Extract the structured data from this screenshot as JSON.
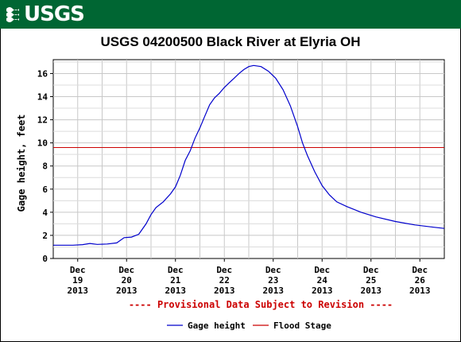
{
  "header": {
    "logo_text": "USGS"
  },
  "chart_data": {
    "type": "line",
    "title": "USGS 04200500 Black River at Elyria OH",
    "ylabel": "Gage height, feet",
    "xlabel": "",
    "ylim": [
      0,
      17.2
    ],
    "yticks": [
      0,
      2,
      4,
      6,
      8,
      10,
      12,
      14,
      16
    ],
    "xlim": [
      0,
      8
    ],
    "xticks": [
      {
        "x": 0.5,
        "lines": [
          "Dec",
          "19",
          "2013"
        ]
      },
      {
        "x": 1.5,
        "lines": [
          "Dec",
          "20",
          "2013"
        ]
      },
      {
        "x": 2.5,
        "lines": [
          "Dec",
          "21",
          "2013"
        ]
      },
      {
        "x": 3.5,
        "lines": [
          "Dec",
          "22",
          "2013"
        ]
      },
      {
        "x": 4.5,
        "lines": [
          "Dec",
          "23",
          "2013"
        ]
      },
      {
        "x": 5.5,
        "lines": [
          "Dec",
          "24",
          "2013"
        ]
      },
      {
        "x": 6.5,
        "lines": [
          "Dec",
          "25",
          "2013"
        ]
      },
      {
        "x": 7.5,
        "lines": [
          "Dec",
          "26",
          "2013"
        ]
      }
    ],
    "grid": true,
    "flood_stage": 9.6,
    "series": [
      {
        "name": "Gage height",
        "color": "#0000cc",
        "points": [
          [
            0.0,
            1.15
          ],
          [
            0.4,
            1.15
          ],
          [
            0.6,
            1.2
          ],
          [
            0.75,
            1.3
          ],
          [
            0.9,
            1.22
          ],
          [
            1.1,
            1.25
          ],
          [
            1.3,
            1.35
          ],
          [
            1.45,
            1.8
          ],
          [
            1.6,
            1.85
          ],
          [
            1.75,
            2.1
          ],
          [
            1.9,
            3.0
          ],
          [
            2.0,
            3.8
          ],
          [
            2.1,
            4.4
          ],
          [
            2.25,
            4.9
          ],
          [
            2.4,
            5.6
          ],
          [
            2.5,
            6.2
          ],
          [
            2.6,
            7.2
          ],
          [
            2.7,
            8.5
          ],
          [
            2.8,
            9.3
          ],
          [
            2.9,
            10.4
          ],
          [
            3.0,
            11.3
          ],
          [
            3.1,
            12.3
          ],
          [
            3.2,
            13.3
          ],
          [
            3.3,
            13.9
          ],
          [
            3.4,
            14.3
          ],
          [
            3.5,
            14.8
          ],
          [
            3.6,
            15.2
          ],
          [
            3.7,
            15.6
          ],
          [
            3.8,
            16.0
          ],
          [
            3.9,
            16.35
          ],
          [
            4.0,
            16.6
          ],
          [
            4.1,
            16.7
          ],
          [
            4.25,
            16.6
          ],
          [
            4.4,
            16.2
          ],
          [
            4.55,
            15.6
          ],
          [
            4.7,
            14.6
          ],
          [
            4.85,
            13.2
          ],
          [
            5.0,
            11.4
          ],
          [
            5.1,
            10.0
          ],
          [
            5.2,
            8.9
          ],
          [
            5.35,
            7.5
          ],
          [
            5.5,
            6.3
          ],
          [
            5.65,
            5.5
          ],
          [
            5.8,
            4.9
          ],
          [
            6.0,
            4.5
          ],
          [
            6.3,
            4.0
          ],
          [
            6.6,
            3.6
          ],
          [
            7.0,
            3.2
          ],
          [
            7.4,
            2.9
          ],
          [
            7.8,
            2.7
          ],
          [
            8.0,
            2.6
          ]
        ]
      }
    ],
    "legend": [
      {
        "name": "Gage height",
        "color": "#0000cc"
      },
      {
        "name": "Flood Stage",
        "color": "#cc0000"
      }
    ],
    "notice": "---- Provisional Data Subject to Revision ----"
  }
}
